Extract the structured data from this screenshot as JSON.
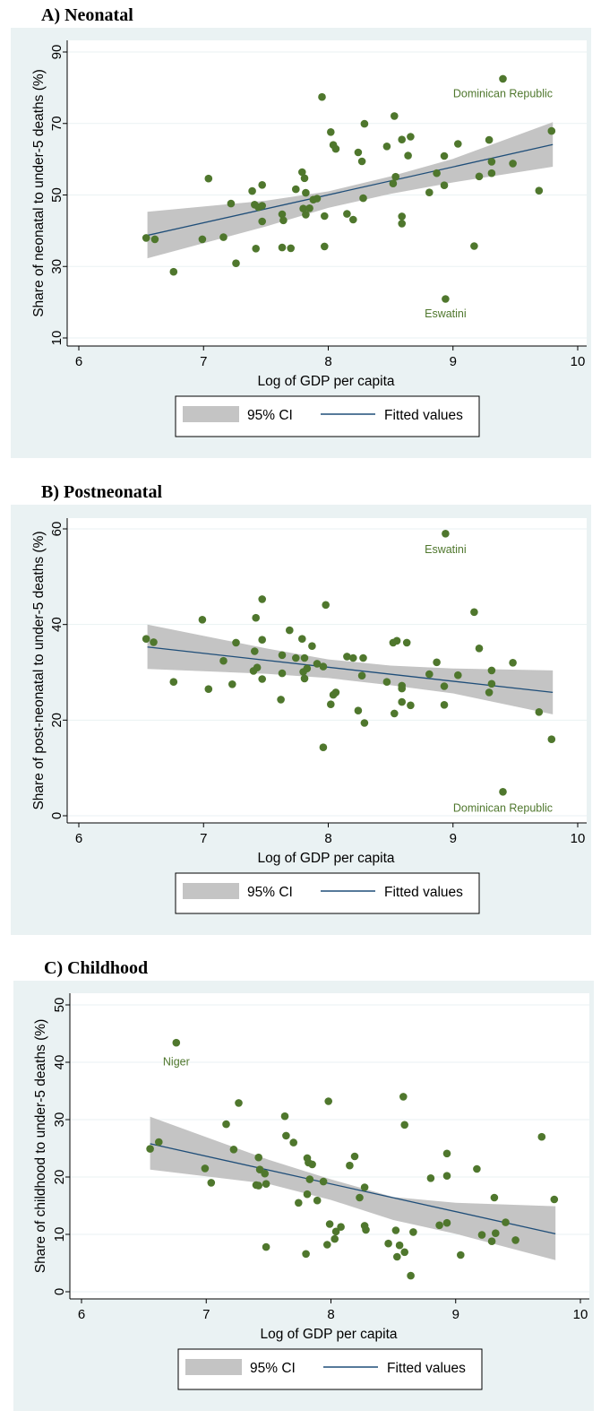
{
  "colors": {
    "panel_bg": "#eaf2f3",
    "point": "#4f772d",
    "label": "#4f772d",
    "fit_line": "#1f4e79",
    "ci_band": "#c4c4c4"
  },
  "chart_data": [
    {
      "type": "scatter",
      "title": "A)  Neonatal",
      "xlabel": "Log of GDP per capita",
      "ylabel": "Share of neonatal to under-5 deaths (%)",
      "xlim": [
        6,
        10
      ],
      "ylim": [
        10,
        90
      ],
      "x_ticks": [
        "6",
        "7",
        "8",
        "9",
        "10"
      ],
      "y_ticks": [
        "10",
        "30",
        "50",
        "70",
        "90"
      ],
      "legend": {
        "position": "bottom",
        "entries": [
          "95% CI",
          "Fitted values"
        ]
      },
      "fit": {
        "x": [
          6.55,
          9.8
        ],
        "y": [
          38.7,
          64.1
        ]
      },
      "ci_upper": {
        "x": [
          6.55,
          7.5,
          8.0,
          8.5,
          9.0,
          9.8
        ],
        "y": [
          45.3,
          48.4,
          51.0,
          55.2,
          60.1,
          70.4
        ]
      },
      "ci_lower": {
        "x": [
          6.55,
          7.5,
          8.0,
          8.5,
          9.0,
          9.8
        ],
        "y": [
          32.3,
          41.2,
          46.4,
          50.3,
          53.5,
          57.9
        ]
      },
      "points": [
        [
          6.54,
          38.0
        ],
        [
          6.61,
          37.6
        ],
        [
          6.76,
          28.5
        ],
        [
          6.99,
          37.6
        ],
        [
          7.04,
          54.6
        ],
        [
          7.16,
          38.2
        ],
        [
          7.22,
          47.6
        ],
        [
          7.26,
          30.9
        ],
        [
          7.39,
          51.1
        ],
        [
          7.41,
          47.3
        ],
        [
          7.42,
          35.0
        ],
        [
          7.44,
          46.6
        ],
        [
          7.47,
          52.8
        ],
        [
          7.47,
          42.6
        ],
        [
          7.47,
          47.0
        ],
        [
          7.63,
          44.6
        ],
        [
          7.63,
          35.3
        ],
        [
          7.64,
          42.9
        ],
        [
          7.7,
          35.1
        ],
        [
          7.74,
          51.6
        ],
        [
          7.79,
          56.4
        ],
        [
          7.81,
          54.7
        ],
        [
          7.8,
          46.2
        ],
        [
          7.82,
          44.5
        ],
        [
          7.82,
          50.6
        ],
        [
          7.85,
          46.3
        ],
        [
          7.88,
          48.7
        ],
        [
          7.91,
          49.0
        ],
        [
          7.95,
          77.4
        ],
        [
          7.97,
          35.6
        ],
        [
          7.97,
          44.1
        ],
        [
          8.02,
          67.6
        ],
        [
          8.04,
          64.0
        ],
        [
          8.06,
          62.9
        ],
        [
          8.15,
          44.7
        ],
        [
          8.2,
          43.1
        ],
        [
          8.24,
          61.9
        ],
        [
          8.27,
          59.4
        ],
        [
          8.28,
          49.1
        ],
        [
          8.29,
          69.9
        ],
        [
          8.47,
          63.6
        ],
        [
          8.52,
          53.2
        ],
        [
          8.53,
          72.1
        ],
        [
          8.54,
          55.1
        ],
        [
          8.59,
          65.5
        ],
        [
          8.59,
          44.0
        ],
        [
          8.59,
          42.0
        ],
        [
          8.64,
          61.0
        ],
        [
          8.66,
          66.3
        ],
        [
          8.81,
          50.7
        ],
        [
          8.87,
          56.1
        ],
        [
          8.93,
          60.9
        ],
        [
          8.93,
          52.7
        ],
        [
          8.94,
          20.9
        ],
        [
          9.04,
          64.3
        ],
        [
          9.17,
          35.7
        ],
        [
          9.21,
          55.2
        ],
        [
          9.29,
          65.4
        ],
        [
          9.31,
          56.1
        ],
        [
          9.31,
          59.3
        ],
        [
          9.4,
          82.5
        ],
        [
          9.48,
          58.8
        ],
        [
          9.69,
          51.2
        ],
        [
          9.79,
          67.9
        ]
      ],
      "annotations": [
        {
          "text": "Dominican Republic",
          "x": 9.4,
          "y": 78.3
        },
        {
          "text": "Eswatini",
          "x": 8.94,
          "y": 16.8
        }
      ]
    },
    {
      "type": "scatter",
      "title": "B)  Postneonatal",
      "xlabel": "Log of GDP per capita",
      "ylabel": "Share of post-neonatal to under-5 deaths (%)",
      "xlim": [
        6,
        10
      ],
      "ylim": [
        0,
        60
      ],
      "x_ticks": [
        "6",
        "7",
        "8",
        "9",
        "10"
      ],
      "y_ticks": [
        "0",
        "20",
        "40",
        "60"
      ],
      "legend": {
        "position": "bottom",
        "entries": [
          "95% CI",
          "Fitted values"
        ]
      },
      "fit": {
        "x": [
          6.55,
          9.8
        ],
        "y": [
          35.3,
          25.8
        ]
      },
      "ci_upper": {
        "x": [
          6.55,
          7.5,
          8.0,
          8.5,
          9.0,
          9.8
        ],
        "y": [
          40.0,
          35.0,
          32.7,
          31.4,
          30.8,
          30.4
        ]
      },
      "ci_lower": {
        "x": [
          6.55,
          7.5,
          8.0,
          8.5,
          9.0,
          9.8
        ],
        "y": [
          30.7,
          29.7,
          28.8,
          27.3,
          25.6,
          21.2
        ]
      },
      "points": [
        [
          6.54,
          37.0
        ],
        [
          6.6,
          36.3
        ],
        [
          6.76,
          28.0
        ],
        [
          6.99,
          41.0
        ],
        [
          7.04,
          26.5
        ],
        [
          7.16,
          32.4
        ],
        [
          7.23,
          27.5
        ],
        [
          7.26,
          36.2
        ],
        [
          7.4,
          30.3
        ],
        [
          7.41,
          34.4
        ],
        [
          7.42,
          41.4
        ],
        [
          7.43,
          31.0
        ],
        [
          7.47,
          45.3
        ],
        [
          7.47,
          36.8
        ],
        [
          7.47,
          28.6
        ],
        [
          7.62,
          24.3
        ],
        [
          7.63,
          33.6
        ],
        [
          7.63,
          29.8
        ],
        [
          7.69,
          38.8
        ],
        [
          7.74,
          33.0
        ],
        [
          7.79,
          37.0
        ],
        [
          7.8,
          30.1
        ],
        [
          7.81,
          33.0
        ],
        [
          7.81,
          28.7
        ],
        [
          7.83,
          30.8
        ],
        [
          7.87,
          35.5
        ],
        [
          7.91,
          31.8
        ],
        [
          7.96,
          14.3
        ],
        [
          7.96,
          31.2
        ],
        [
          7.98,
          44.1
        ],
        [
          8.02,
          23.3
        ],
        [
          8.04,
          25.3
        ],
        [
          8.06,
          25.8
        ],
        [
          8.15,
          33.3
        ],
        [
          8.2,
          33.0
        ],
        [
          8.24,
          22.0
        ],
        [
          8.27,
          29.3
        ],
        [
          8.28,
          33.0
        ],
        [
          8.29,
          19.4
        ],
        [
          8.47,
          28.0
        ],
        [
          8.52,
          36.2
        ],
        [
          8.53,
          21.4
        ],
        [
          8.55,
          36.6
        ],
        [
          8.59,
          27.2
        ],
        [
          8.59,
          26.6
        ],
        [
          8.59,
          23.8
        ],
        [
          8.63,
          36.2
        ],
        [
          8.66,
          23.1
        ],
        [
          8.81,
          29.6
        ],
        [
          8.87,
          32.1
        ],
        [
          8.93,
          27.1
        ],
        [
          8.93,
          23.2
        ],
        [
          8.94,
          59.0
        ],
        [
          9.04,
          29.4
        ],
        [
          9.17,
          42.6
        ],
        [
          9.21,
          35.0
        ],
        [
          9.29,
          25.8
        ],
        [
          9.31,
          30.4
        ],
        [
          9.31,
          27.6
        ],
        [
          9.4,
          5.0
        ],
        [
          9.48,
          32.0
        ],
        [
          9.69,
          21.7
        ],
        [
          9.79,
          16.0
        ]
      ],
      "annotations": [
        {
          "text": "Eswatini",
          "x": 8.94,
          "y": 55.7
        },
        {
          "text": "Dominican Republic",
          "x": 9.4,
          "y": 1.6
        }
      ]
    },
    {
      "type": "scatter",
      "title": "C)  Childhood",
      "xlabel": "Log of GDP per capita",
      "ylabel": "Share of childhood to under-5 deaths (%)",
      "xlim": [
        6,
        10
      ],
      "ylim": [
        0,
        50
      ],
      "x_ticks": [
        "6",
        "7",
        "8",
        "9",
        "10"
      ],
      "y_ticks": [
        "0",
        "10",
        "20",
        "30",
        "40",
        "50"
      ],
      "legend": {
        "position": "bottom",
        "entries": [
          "95% CI",
          "Fitted values"
        ]
      },
      "fit": {
        "x": [
          6.55,
          9.8
        ],
        "y": [
          25.8,
          10.1
        ]
      },
      "ci_upper": {
        "x": [
          6.55,
          7.5,
          8.0,
          8.5,
          9.0,
          9.8
        ],
        "y": [
          30.5,
          23.0,
          19.6,
          16.5,
          15.5,
          14.9
        ]
      },
      "ci_lower": {
        "x": [
          6.55,
          7.5,
          8.0,
          8.5,
          9.0,
          9.8
        ],
        "y": [
          21.3,
          18.8,
          16.0,
          12.5,
          10.1,
          5.5
        ]
      },
      "points": [
        [
          6.55,
          24.9
        ],
        [
          6.62,
          26.1
        ],
        [
          6.76,
          43.4
        ],
        [
          6.99,
          21.5
        ],
        [
          7.04,
          19.0
        ],
        [
          7.16,
          29.2
        ],
        [
          7.22,
          24.8
        ],
        [
          7.26,
          32.9
        ],
        [
          7.4,
          18.6
        ],
        [
          7.42,
          18.5
        ],
        [
          7.42,
          23.4
        ],
        [
          7.43,
          21.3
        ],
        [
          7.47,
          20.6
        ],
        [
          7.48,
          7.8
        ],
        [
          7.48,
          18.8
        ],
        [
          7.63,
          30.6
        ],
        [
          7.64,
          27.2
        ],
        [
          7.7,
          26.0
        ],
        [
          7.74,
          15.5
        ],
        [
          7.8,
          6.6
        ],
        [
          7.81,
          23.3
        ],
        [
          7.81,
          17.0
        ],
        [
          7.82,
          22.5
        ],
        [
          7.83,
          19.6
        ],
        [
          7.85,
          22.2
        ],
        [
          7.89,
          15.9
        ],
        [
          7.94,
          19.2
        ],
        [
          7.97,
          8.2
        ],
        [
          7.98,
          33.2
        ],
        [
          7.99,
          11.8
        ],
        [
          8.03,
          9.2
        ],
        [
          8.04,
          10.5
        ],
        [
          8.08,
          11.3
        ],
        [
          8.15,
          22.0
        ],
        [
          8.19,
          23.6
        ],
        [
          8.23,
          16.4
        ],
        [
          8.27,
          18.2
        ],
        [
          8.27,
          11.5
        ],
        [
          8.28,
          10.8
        ],
        [
          8.46,
          8.4
        ],
        [
          8.52,
          10.7
        ],
        [
          8.53,
          6.1
        ],
        [
          8.55,
          8.1
        ],
        [
          8.58,
          34.0
        ],
        [
          8.59,
          29.1
        ],
        [
          8.59,
          6.9
        ],
        [
          8.64,
          2.8
        ],
        [
          8.66,
          10.4
        ],
        [
          8.8,
          19.8
        ],
        [
          8.87,
          11.6
        ],
        [
          8.93,
          24.1
        ],
        [
          8.93,
          20.2
        ],
        [
          8.93,
          12.0
        ],
        [
          9.04,
          6.4
        ],
        [
          9.17,
          21.4
        ],
        [
          9.21,
          9.9
        ],
        [
          9.29,
          8.8
        ],
        [
          9.31,
          16.4
        ],
        [
          9.32,
          10.2
        ],
        [
          9.4,
          12.1
        ],
        [
          9.48,
          9.0
        ],
        [
          9.69,
          27.0
        ],
        [
          9.79,
          16.1
        ]
      ],
      "annotations": [
        {
          "text": "Niger",
          "x": 6.76,
          "y": 40.1
        }
      ]
    }
  ]
}
